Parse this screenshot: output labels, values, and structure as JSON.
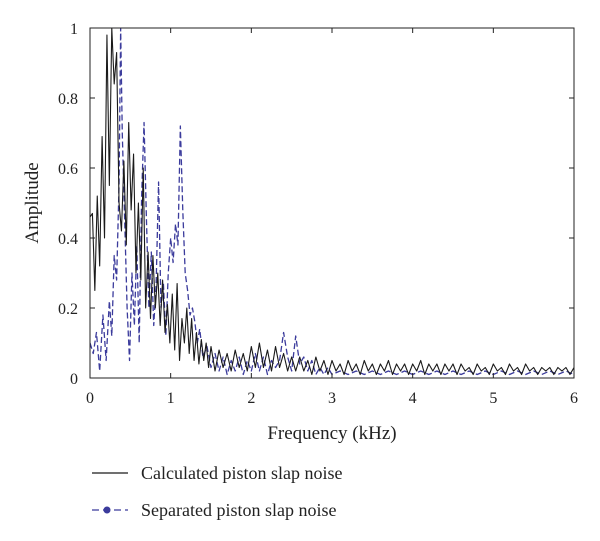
{
  "chart_data": {
    "type": "line",
    "xlabel": "Frequency (kHz)",
    "ylabel": "Amplitude",
    "xlim": [
      0,
      6
    ],
    "ylim": [
      0,
      1
    ],
    "x_ticks": [
      "0",
      "1",
      "2",
      "3",
      "4",
      "5",
      "6"
    ],
    "y_ticks": [
      "0",
      "0.2",
      "0.4",
      "0.6",
      "0.8",
      "1"
    ],
    "grid": false,
    "legend_position": "bottom",
    "series": [
      {
        "name": "Calculated piston slap noise",
        "color": "#1a1a1a",
        "style": "solid",
        "points": [
          [
            0.0,
            0.46
          ],
          [
            0.03,
            0.47
          ],
          [
            0.06,
            0.25
          ],
          [
            0.09,
            0.52
          ],
          [
            0.12,
            0.32
          ],
          [
            0.15,
            0.69
          ],
          [
            0.18,
            0.4
          ],
          [
            0.21,
            0.98
          ],
          [
            0.24,
            0.55
          ],
          [
            0.27,
            1.0
          ],
          [
            0.3,
            0.84
          ],
          [
            0.33,
            0.93
          ],
          [
            0.36,
            0.5
          ],
          [
            0.39,
            0.42
          ],
          [
            0.42,
            0.62
          ],
          [
            0.45,
            0.38
          ],
          [
            0.48,
            0.73
          ],
          [
            0.51,
            0.48
          ],
          [
            0.54,
            0.64
          ],
          [
            0.57,
            0.3
          ],
          [
            0.6,
            0.5
          ],
          [
            0.63,
            0.28
          ],
          [
            0.66,
            0.6
          ],
          [
            0.69,
            0.2
          ],
          [
            0.72,
            0.36
          ],
          [
            0.75,
            0.17
          ],
          [
            0.78,
            0.35
          ],
          [
            0.81,
            0.2
          ],
          [
            0.84,
            0.3
          ],
          [
            0.87,
            0.15
          ],
          [
            0.9,
            0.28
          ],
          [
            0.93,
            0.13
          ],
          [
            0.96,
            0.21
          ],
          [
            0.99,
            0.1
          ],
          [
            1.02,
            0.24
          ],
          [
            1.05,
            0.08
          ],
          [
            1.08,
            0.27
          ],
          [
            1.11,
            0.05
          ],
          [
            1.14,
            0.17
          ],
          [
            1.17,
            0.1
          ],
          [
            1.2,
            0.2
          ],
          [
            1.23,
            0.07
          ],
          [
            1.26,
            0.17
          ],
          [
            1.29,
            0.05
          ],
          [
            1.32,
            0.13
          ],
          [
            1.35,
            0.04
          ],
          [
            1.38,
            0.11
          ],
          [
            1.41,
            0.05
          ],
          [
            1.44,
            0.1
          ],
          [
            1.47,
            0.03
          ],
          [
            1.5,
            0.09
          ],
          [
            1.55,
            0.02
          ],
          [
            1.6,
            0.08
          ],
          [
            1.65,
            0.03
          ],
          [
            1.7,
            0.07
          ],
          [
            1.75,
            0.02
          ],
          [
            1.8,
            0.08
          ],
          [
            1.85,
            0.03
          ],
          [
            1.9,
            0.07
          ],
          [
            1.95,
            0.02
          ],
          [
            2.0,
            0.09
          ],
          [
            2.05,
            0.03
          ],
          [
            2.1,
            0.1
          ],
          [
            2.15,
            0.03
          ],
          [
            2.2,
            0.08
          ],
          [
            2.25,
            0.02
          ],
          [
            2.3,
            0.09
          ],
          [
            2.35,
            0.03
          ],
          [
            2.4,
            0.07
          ],
          [
            2.45,
            0.02
          ],
          [
            2.5,
            0.06
          ],
          [
            2.55,
            0.02
          ],
          [
            2.6,
            0.06
          ],
          [
            2.65,
            0.02
          ],
          [
            2.7,
            0.05
          ],
          [
            2.75,
            0.01
          ],
          [
            2.8,
            0.06
          ],
          [
            2.85,
            0.02
          ],
          [
            2.9,
            0.05
          ],
          [
            2.95,
            0.01
          ],
          [
            3.0,
            0.05
          ],
          [
            3.05,
            0.02
          ],
          [
            3.1,
            0.04
          ],
          [
            3.15,
            0.01
          ],
          [
            3.2,
            0.05
          ],
          [
            3.25,
            0.02
          ],
          [
            3.3,
            0.04
          ],
          [
            3.35,
            0.01
          ],
          [
            3.4,
            0.05
          ],
          [
            3.45,
            0.02
          ],
          [
            3.5,
            0.04
          ],
          [
            3.55,
            0.01
          ],
          [
            3.6,
            0.04
          ],
          [
            3.65,
            0.02
          ],
          [
            3.7,
            0.05
          ],
          [
            3.75,
            0.01
          ],
          [
            3.8,
            0.04
          ],
          [
            3.85,
            0.02
          ],
          [
            3.9,
            0.04
          ],
          [
            3.95,
            0.01
          ],
          [
            4.0,
            0.04
          ],
          [
            4.05,
            0.02
          ],
          [
            4.1,
            0.05
          ],
          [
            4.15,
            0.01
          ],
          [
            4.2,
            0.04
          ],
          [
            4.25,
            0.02
          ],
          [
            4.3,
            0.04
          ],
          [
            4.35,
            0.01
          ],
          [
            4.4,
            0.04
          ],
          [
            4.45,
            0.02
          ],
          [
            4.5,
            0.04
          ],
          [
            4.55,
            0.01
          ],
          [
            4.6,
            0.04
          ],
          [
            4.65,
            0.02
          ],
          [
            4.7,
            0.03
          ],
          [
            4.75,
            0.01
          ],
          [
            4.8,
            0.04
          ],
          [
            4.85,
            0.02
          ],
          [
            4.9,
            0.03
          ],
          [
            4.95,
            0.01
          ],
          [
            5.0,
            0.04
          ],
          [
            5.05,
            0.02
          ],
          [
            5.1,
            0.03
          ],
          [
            5.15,
            0.01
          ],
          [
            5.2,
            0.04
          ],
          [
            5.25,
            0.02
          ],
          [
            5.3,
            0.03
          ],
          [
            5.35,
            0.01
          ],
          [
            5.4,
            0.04
          ],
          [
            5.45,
            0.02
          ],
          [
            5.5,
            0.03
          ],
          [
            5.55,
            0.01
          ],
          [
            5.6,
            0.03
          ],
          [
            5.65,
            0.02
          ],
          [
            5.7,
            0.03
          ],
          [
            5.75,
            0.01
          ],
          [
            5.8,
            0.03
          ],
          [
            5.85,
            0.02
          ],
          [
            5.9,
            0.03
          ],
          [
            5.95,
            0.01
          ],
          [
            6.0,
            0.03
          ]
        ]
      },
      {
        "name": "Separated piston slap noise",
        "color": "#3b3b9c",
        "style": "dashed",
        "points": [
          [
            0.0,
            0.1
          ],
          [
            0.04,
            0.07
          ],
          [
            0.08,
            0.13
          ],
          [
            0.12,
            0.02
          ],
          [
            0.16,
            0.18
          ],
          [
            0.2,
            0.05
          ],
          [
            0.24,
            0.22
          ],
          [
            0.27,
            0.12
          ],
          [
            0.3,
            0.35
          ],
          [
            0.33,
            0.28
          ],
          [
            0.36,
            0.55
          ],
          [
            0.38,
            1.0
          ],
          [
            0.4,
            0.7
          ],
          [
            0.43,
            0.45
          ],
          [
            0.46,
            0.2
          ],
          [
            0.49,
            0.05
          ],
          [
            0.52,
            0.3
          ],
          [
            0.55,
            0.15
          ],
          [
            0.58,
            0.38
          ],
          [
            0.61,
            0.1
          ],
          [
            0.64,
            0.52
          ],
          [
            0.67,
            0.73
          ],
          [
            0.7,
            0.45
          ],
          [
            0.73,
            0.2
          ],
          [
            0.76,
            0.36
          ],
          [
            0.79,
            0.15
          ],
          [
            0.82,
            0.27
          ],
          [
            0.85,
            0.56
          ],
          [
            0.88,
            0.2
          ],
          [
            0.91,
            0.27
          ],
          [
            0.94,
            0.12
          ],
          [
            0.97,
            0.3
          ],
          [
            1.0,
            0.4
          ],
          [
            1.03,
            0.33
          ],
          [
            1.06,
            0.44
          ],
          [
            1.09,
            0.38
          ],
          [
            1.12,
            0.72
          ],
          [
            1.15,
            0.48
          ],
          [
            1.18,
            0.3
          ],
          [
            1.21,
            0.25
          ],
          [
            1.24,
            0.18
          ],
          [
            1.27,
            0.2
          ],
          [
            1.3,
            0.16
          ],
          [
            1.33,
            0.1
          ],
          [
            1.36,
            0.14
          ],
          [
            1.4,
            0.06
          ],
          [
            1.45,
            0.09
          ],
          [
            1.5,
            0.03
          ],
          [
            1.55,
            0.07
          ],
          [
            1.6,
            0.02
          ],
          [
            1.65,
            0.06
          ],
          [
            1.7,
            0.01
          ],
          [
            1.75,
            0.05
          ],
          [
            1.8,
            0.02
          ],
          [
            1.85,
            0.06
          ],
          [
            1.9,
            0.01
          ],
          [
            1.95,
            0.05
          ],
          [
            2.0,
            0.02
          ],
          [
            2.05,
            0.07
          ],
          [
            2.1,
            0.02
          ],
          [
            2.15,
            0.06
          ],
          [
            2.2,
            0.01
          ],
          [
            2.25,
            0.05
          ],
          [
            2.3,
            0.03
          ],
          [
            2.35,
            0.05
          ],
          [
            2.4,
            0.13
          ],
          [
            2.45,
            0.06
          ],
          [
            2.5,
            0.02
          ],
          [
            2.55,
            0.12
          ],
          [
            2.6,
            0.04
          ],
          [
            2.65,
            0.06
          ],
          [
            2.7,
            0.02
          ],
          [
            2.75,
            0.05
          ],
          [
            2.8,
            0.01
          ],
          [
            2.85,
            0.03
          ],
          [
            2.9,
            0.01
          ],
          [
            2.95,
            0.03
          ],
          [
            3.0,
            0.01
          ],
          [
            3.1,
            0.02
          ],
          [
            3.2,
            0.01
          ],
          [
            3.3,
            0.02
          ],
          [
            3.4,
            0.01
          ],
          [
            3.5,
            0.02
          ],
          [
            3.6,
            0.01
          ],
          [
            3.7,
            0.02
          ],
          [
            3.8,
            0.01
          ],
          [
            3.9,
            0.02
          ],
          [
            4.0,
            0.01
          ],
          [
            4.1,
            0.02
          ],
          [
            4.2,
            0.01
          ],
          [
            4.3,
            0.02
          ],
          [
            4.4,
            0.01
          ],
          [
            4.5,
            0.02
          ],
          [
            4.6,
            0.01
          ],
          [
            4.7,
            0.02
          ],
          [
            4.8,
            0.01
          ],
          [
            4.9,
            0.02
          ],
          [
            5.0,
            0.01
          ],
          [
            5.1,
            0.02
          ],
          [
            5.2,
            0.01
          ],
          [
            5.3,
            0.02
          ],
          [
            5.4,
            0.01
          ],
          [
            5.5,
            0.02
          ],
          [
            5.6,
            0.01
          ],
          [
            5.7,
            0.02
          ],
          [
            5.8,
            0.01
          ],
          [
            5.9,
            0.02
          ],
          [
            6.0,
            0.01
          ]
        ]
      }
    ]
  }
}
